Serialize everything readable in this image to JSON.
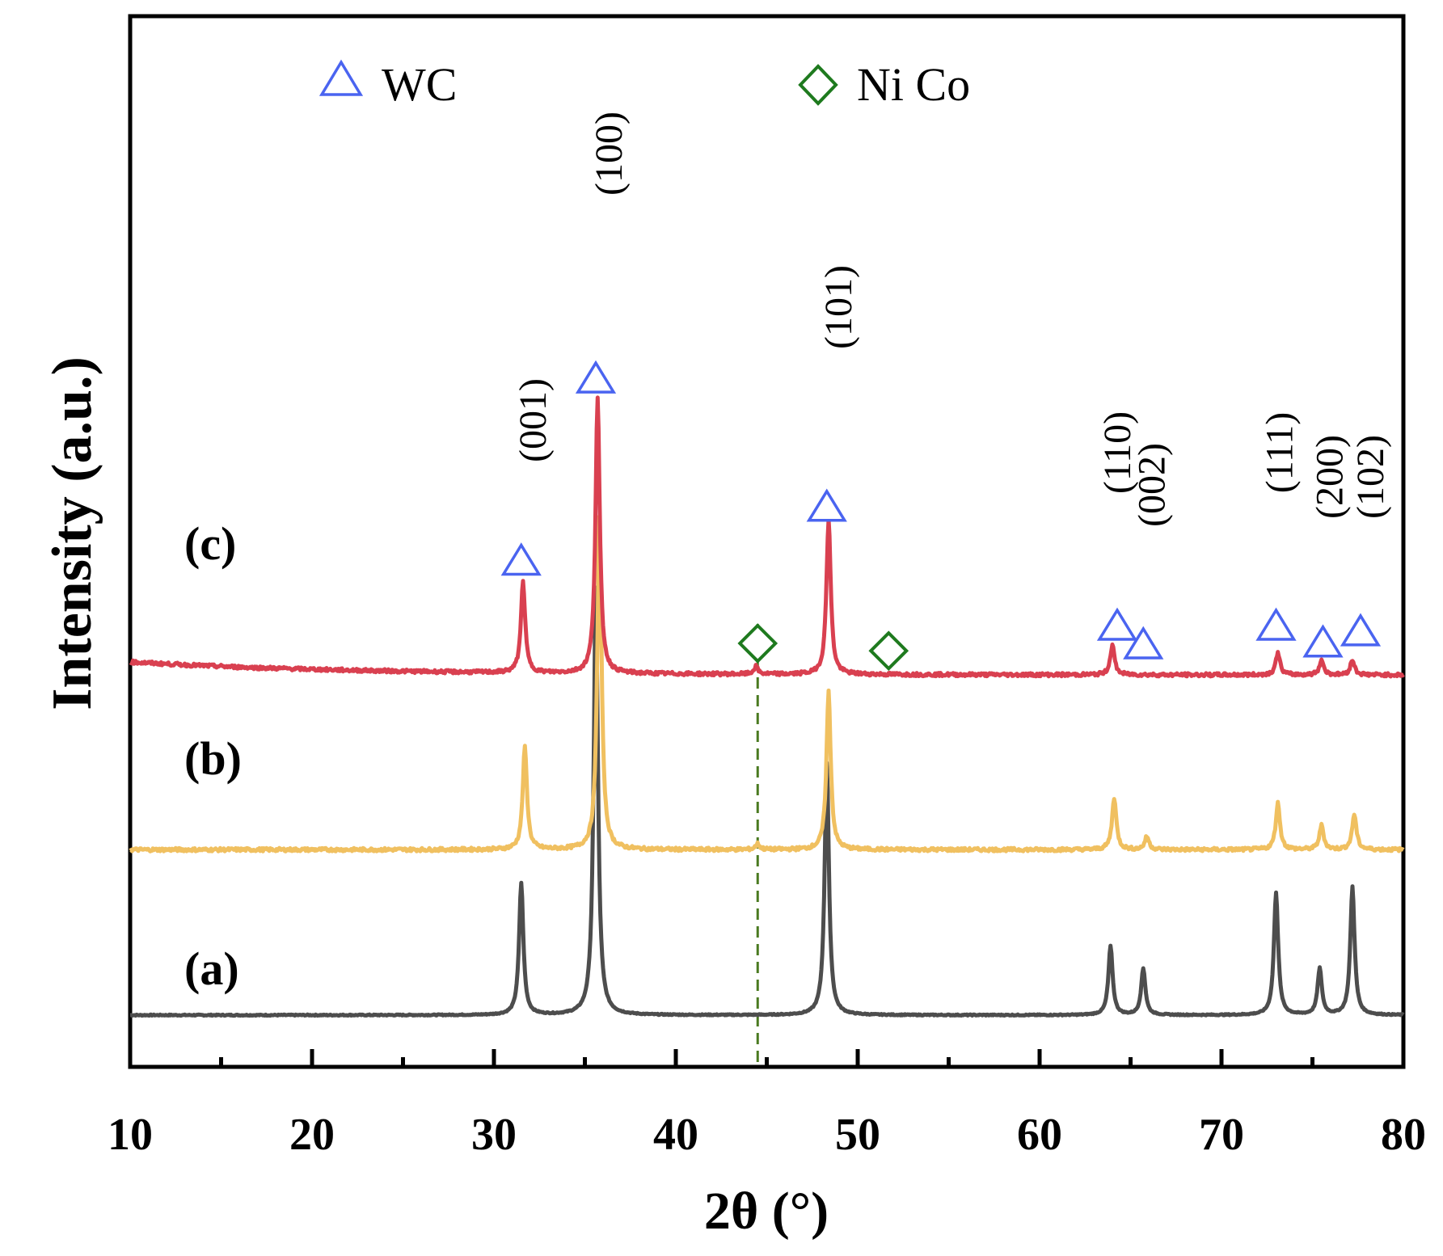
{
  "chart_data": {
    "type": "line",
    "title": "",
    "xlabel": "2θ (°)",
    "ylabel": "Intensity (a.u.)",
    "xlim": [
      10,
      80
    ],
    "ylim": [
      0,
      4
    ],
    "xticks": [
      "10",
      "20",
      "30",
      "40",
      "50",
      "60",
      "70",
      "80"
    ],
    "minor_xticks": [
      15,
      25,
      35,
      45,
      55,
      65,
      75
    ],
    "grid": false,
    "legend": [
      {
        "label": "WC",
        "marker": "triangle",
        "color": "#4a64f0"
      },
      {
        "label": "Ni Co",
        "marker": "diamond",
        "color": "#1e7a1e"
      }
    ],
    "series": [
      {
        "name": "(a)",
        "color": "#4d4d4d",
        "baseline": 0.0,
        "peaks": [
          [
            31.5,
            0.71
          ],
          [
            35.6,
            2.3
          ],
          [
            48.3,
            1.36
          ],
          [
            63.9,
            0.37
          ],
          [
            65.7,
            0.25
          ],
          [
            73.0,
            0.66
          ],
          [
            75.4,
            0.25
          ],
          [
            77.2,
            0.69
          ]
        ]
      },
      {
        "name": "(b)",
        "color": "#f0c060",
        "baseline": 0.89,
        "peaks": [
          [
            31.7,
            0.55
          ],
          [
            35.8,
            1.8
          ],
          [
            44.5,
            0.03
          ],
          [
            48.4,
            0.85
          ],
          [
            64.1,
            0.28
          ],
          [
            65.9,
            0.07
          ],
          [
            73.1,
            0.25
          ],
          [
            75.5,
            0.13
          ],
          [
            77.3,
            0.19
          ]
        ]
      },
      {
        "name": "(c)",
        "color": "#d94050",
        "baseline": 1.83,
        "peaks": [
          [
            31.6,
            0.49
          ],
          [
            35.7,
            1.48
          ],
          [
            44.4,
            0.04
          ],
          [
            48.4,
            0.84
          ],
          [
            64.0,
            0.16
          ],
          [
            73.1,
            0.12
          ],
          [
            75.5,
            0.08
          ],
          [
            77.2,
            0.08
          ]
        ]
      }
    ],
    "annotations": [
      {
        "text": "(001)",
        "x": 31.5,
        "marker": "triangle",
        "marker_y": 2.45
      },
      {
        "text": "(100)",
        "x": 35.6,
        "marker": "triangle",
        "marker_y": 3.43
      },
      {
        "text": "(101)",
        "x": 48.3,
        "marker": "triangle",
        "marker_y": 2.74
      },
      {
        "text": "(110)",
        "x": 64.0,
        "marker": "triangle",
        "marker_y": 2.1
      },
      {
        "text": "(002)",
        "x": 65.7,
        "marker": "triangle",
        "marker_y": 2.0
      },
      {
        "text": "(111)",
        "x": 73.0,
        "marker": "triangle",
        "marker_y": 2.1
      },
      {
        "text": "(200)",
        "x": 75.4,
        "marker": "triangle",
        "marker_y": 2.01
      },
      {
        "text": "(102)",
        "x": 77.2,
        "marker": "triangle",
        "marker_y": 2.07
      }
    ],
    "nico_markers": [
      {
        "x": 44.5,
        "y": 2.0
      },
      {
        "x": 51.7,
        "y": 1.96
      }
    ],
    "reference_line": {
      "x": 44.5,
      "style": "dashed",
      "color": "#4a7a20"
    }
  }
}
